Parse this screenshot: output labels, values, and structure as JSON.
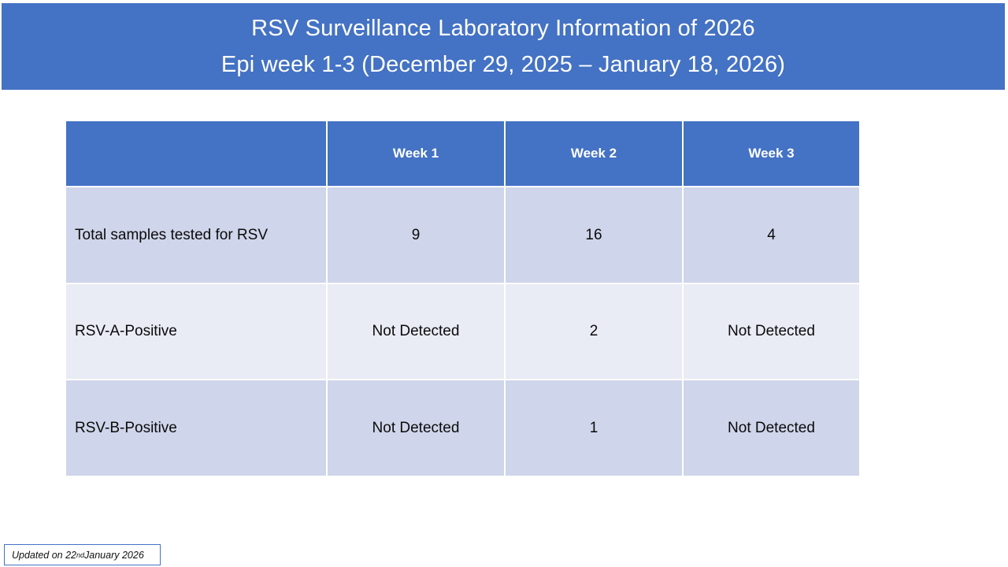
{
  "slide": {
    "title_line1": "RSV Surveillance Laboratory Information of 2026",
    "title_line2": "Epi week 1-3 (December 29, 2025 – January 18, 2026)"
  },
  "table": {
    "columns": [
      "",
      "Week 1",
      "Week 2",
      "Week 3"
    ],
    "rows": [
      {
        "label": "Total samples tested for RSV",
        "values": [
          "9",
          "16",
          "4"
        ]
      },
      {
        "label": "RSV-A-Positive",
        "values": [
          "Not Detected",
          "2",
          "Not Detected"
        ]
      },
      {
        "label": "RSV-B-Positive",
        "values": [
          "Not Detected",
          "1",
          "Not Detected"
        ]
      }
    ]
  },
  "footer": {
    "prefix": "Updated on 22",
    "superscript": "nd",
    "suffix": " January 2026"
  },
  "colors": {
    "banner": "#4472C4",
    "header": "#4472C4",
    "band_dark": "#CFD5EA",
    "band_light": "#E9EBF5",
    "text": "#0b0b0b",
    "footer_border": "#4472C4"
  }
}
